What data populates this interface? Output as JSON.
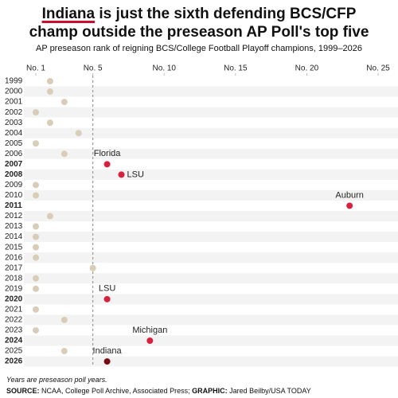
{
  "chart_data": {
    "type": "dot",
    "title": {
      "lead": "Indiana",
      "rest": " is just the sixth defending BCS/CFP champ outside the preseason AP Poll's top five"
    },
    "subtitle": "AP preseason rank of reigning BCS/College Football Playoff champions, 1999–2026",
    "categories": [
      "1999",
      "2000",
      "2001",
      "2002",
      "2003",
      "2004",
      "2005",
      "2006",
      "2007",
      "2008",
      "2009",
      "2010",
      "2011",
      "2012",
      "2013",
      "2014",
      "2015",
      "2016",
      "2017",
      "2018",
      "2019",
      "2020",
      "2021",
      "2022",
      "2023",
      "2024",
      "2025",
      "2026"
    ],
    "values": [
      2,
      2,
      3,
      1,
      2,
      4,
      1,
      3,
      6,
      7,
      1,
      1,
      23,
      2,
      1,
      1,
      1,
      1,
      5,
      1,
      1,
      6,
      1,
      3,
      1,
      9,
      3,
      6
    ],
    "labels": [
      null,
      null,
      null,
      null,
      null,
      null,
      null,
      null,
      "Florida",
      "LSU",
      null,
      null,
      "Auburn",
      null,
      null,
      null,
      null,
      null,
      null,
      null,
      null,
      "LSU",
      null,
      null,
      null,
      "Michigan",
      null,
      "Indiana"
    ],
    "colors": [
      "#d9cdb8",
      "#d9cdb8",
      "#d9cdb8",
      "#d9cdb8",
      "#d9cdb8",
      "#d9cdb8",
      "#d9cdb8",
      "#d9cdb8",
      "#d6223f",
      "#d6223f",
      "#d9cdb8",
      "#d9cdb8",
      "#d6223f",
      "#d9cdb8",
      "#d9cdb8",
      "#d9cdb8",
      "#d9cdb8",
      "#d9cdb8",
      "#d9cdb8",
      "#d9cdb8",
      "#d9cdb8",
      "#d6223f",
      "#d9cdb8",
      "#d9cdb8",
      "#d9cdb8",
      "#d6223f",
      "#d9cdb8",
      "#7a0a12"
    ],
    "xlim": [
      1,
      25
    ],
    "xticks": [
      {
        "value": 1,
        "label": "No. 1"
      },
      {
        "value": 5,
        "label": "No. 5"
      },
      {
        "value": 10,
        "label": "No. 10"
      },
      {
        "value": 15,
        "label": "No. 15"
      },
      {
        "value": 20,
        "label": "No. 20"
      },
      {
        "value": 25,
        "label": "No. 25"
      }
    ],
    "reference_line": 5,
    "note": "Years are preseason poll years.",
    "source_label": "SOURCE:",
    "source": "NCAA, College Poll Archive, Associated Press;",
    "graphic_label": "GRAPHIC:",
    "graphic": "Jared Beilby/USA TODAY"
  }
}
